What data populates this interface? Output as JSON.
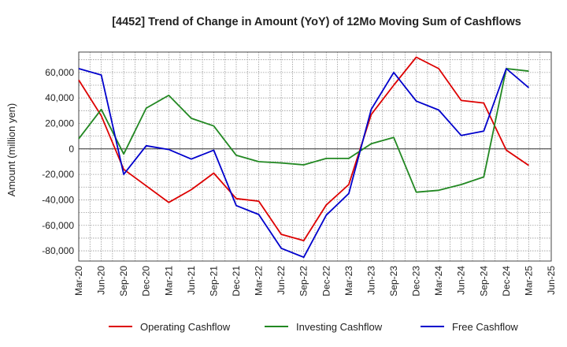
{
  "chart_data": {
    "type": "line",
    "title": "[4452]  Trend of Change in Amount (YoY) of 12Mo Moving Sum of Cashflows",
    "xlabel": "",
    "ylabel": "Amount (million yen)",
    "ylim": [
      -88000,
      76000
    ],
    "yticks": [
      -80000,
      -60000,
      -40000,
      -20000,
      0,
      20000,
      40000,
      60000
    ],
    "ytick_labels": [
      "-80,000",
      "-60,000",
      "-40,000",
      "-20,000",
      "0",
      "20,000",
      "40,000",
      "60,000"
    ],
    "categories": [
      "Mar-20",
      "Jun-20",
      "Sep-20",
      "Dec-20",
      "Mar-21",
      "Jun-21",
      "Sep-21",
      "Dec-21",
      "Mar-22",
      "Jun-22",
      "Sep-22",
      "Dec-22",
      "Mar-23",
      "Jun-23",
      "Sep-23",
      "Dec-23",
      "Mar-24",
      "Jun-24",
      "Sep-24",
      "Dec-24",
      "Mar-25",
      "Jun-25"
    ],
    "grid": true,
    "legend_position": "bottom",
    "series": [
      {
        "name": "Operating Cashflow",
        "color": "#dd0000",
        "values": [
          54000,
          26000,
          -16000,
          -29000,
          -42000,
          -32000,
          -19000,
          -39000,
          -41000,
          -67000,
          -72000,
          -44000,
          -28000,
          27000,
          50000,
          72000,
          63000,
          38000,
          36000,
          -1000,
          -13000,
          null
        ]
      },
      {
        "name": "Investing Cashflow",
        "color": "#228822",
        "values": [
          8000,
          31000,
          -4000,
          32000,
          42000,
          24000,
          18000,
          -5000,
          -10000,
          -11000,
          -12500,
          -7500,
          -7500,
          4000,
          9000,
          -34000,
          -32500,
          -28000,
          -22000,
          63000,
          61000,
          null
        ]
      },
      {
        "name": "Free Cashflow",
        "color": "#0000cc",
        "values": [
          63000,
          58000,
          -20000,
          2500,
          -500,
          -8000,
          -1000,
          -44500,
          -51500,
          -78000,
          -85000,
          -52000,
          -35000,
          31000,
          60000,
          37500,
          30500,
          10500,
          14000,
          63000,
          48000,
          null
        ]
      }
    ]
  }
}
